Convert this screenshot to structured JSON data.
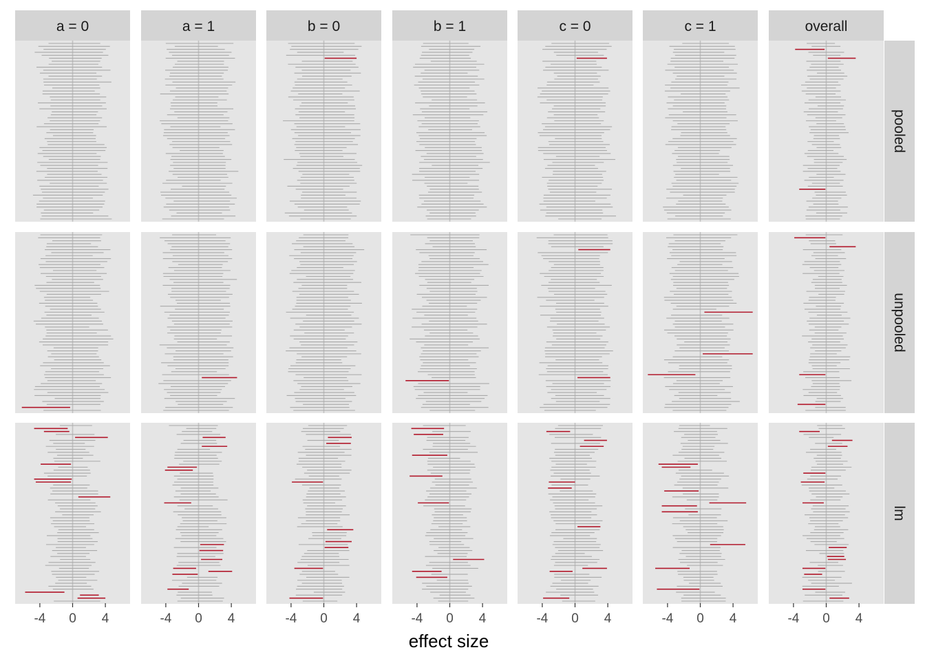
{
  "chart_data": {
    "type": "forest-interval-facets",
    "xlabel": "effect size",
    "xticks": [
      -4,
      0,
      4
    ],
    "xlim": [
      -7,
      7
    ],
    "reference_line": 0,
    "columns": [
      "a = 0",
      "a = 1",
      "b = 0",
      "b = 1",
      "c = 0",
      "c = 1",
      "overall"
    ],
    "rows": [
      "pooled",
      "unpooled",
      "lm"
    ],
    "colors": {
      "panel_bg": "#e5e5e5",
      "strip_bg": "#d4d4d4",
      "interval": "#a9a9a9",
      "highlight": "#b2182b",
      "zero_line": "#c2c2c2"
    },
    "intervals_per_panel": 60,
    "highlighted_intervals": [
      {
        "row": "pooled",
        "column": "b = 0",
        "y": 5,
        "lo": 0.1,
        "hi": 4.0
      },
      {
        "row": "pooled",
        "column": "c = 0",
        "y": 5,
        "lo": 0.2,
        "hi": 3.9
      },
      {
        "row": "pooled",
        "column": "overall",
        "y": 2,
        "lo": -3.8,
        "hi": -0.2
      },
      {
        "row": "pooled",
        "column": "overall",
        "y": 5,
        "lo": 0.2,
        "hi": 3.6
      },
      {
        "row": "pooled",
        "column": "overall",
        "y": 49,
        "lo": -3.3,
        "hi": -0.1
      },
      {
        "row": "unpooled",
        "column": "a = 0",
        "y": 58,
        "lo": -6.2,
        "hi": -0.3
      },
      {
        "row": "unpooled",
        "column": "a = 1",
        "y": 48,
        "lo": 0.4,
        "hi": 4.7
      },
      {
        "row": "unpooled",
        "column": "b = 1",
        "y": 49,
        "lo": -5.4,
        "hi": -0.1
      },
      {
        "row": "unpooled",
        "column": "c = 0",
        "y": 5,
        "lo": 0.4,
        "hi": 4.3
      },
      {
        "row": "unpooled",
        "column": "c = 0",
        "y": 48,
        "lo": 0.3,
        "hi": 4.3
      },
      {
        "row": "unpooled",
        "column": "c = 1",
        "y": 26,
        "lo": 0.5,
        "hi": 6.4
      },
      {
        "row": "unpooled",
        "column": "c = 1",
        "y": 40,
        "lo": 0.3,
        "hi": 6.4
      },
      {
        "row": "unpooled",
        "column": "c = 1",
        "y": 47,
        "lo": -6.4,
        "hi": -0.6
      },
      {
        "row": "unpooled",
        "column": "overall",
        "y": 1,
        "lo": -3.9,
        "hi": -0.1
      },
      {
        "row": "unpooled",
        "column": "overall",
        "y": 4,
        "lo": 0.4,
        "hi": 3.6
      },
      {
        "row": "unpooled",
        "column": "overall",
        "y": 47,
        "lo": -3.3,
        "hi": -0.1
      },
      {
        "row": "unpooled",
        "column": "overall",
        "y": 57,
        "lo": -3.5,
        "hi": -0.1
      },
      {
        "row": "lm",
        "column": "a = 0",
        "y": 1,
        "lo": -4.7,
        "hi": -0.6
      },
      {
        "row": "lm",
        "column": "a = 0",
        "y": 2,
        "lo": -3.5,
        "hi": -0.4
      },
      {
        "row": "lm",
        "column": "a = 0",
        "y": 4,
        "lo": 0.3,
        "hi": 4.3
      },
      {
        "row": "lm",
        "column": "a = 0",
        "y": 13,
        "lo": -3.9,
        "hi": -0.2
      },
      {
        "row": "lm",
        "column": "a = 0",
        "y": 18,
        "lo": -4.7,
        "hi": -0.1
      },
      {
        "row": "lm",
        "column": "a = 0",
        "y": 19,
        "lo": -4.5,
        "hi": -0.2
      },
      {
        "row": "lm",
        "column": "a = 0",
        "y": 24,
        "lo": 0.7,
        "hi": 4.6
      },
      {
        "row": "lm",
        "column": "a = 0",
        "y": 56,
        "lo": -5.8,
        "hi": -1.0
      },
      {
        "row": "lm",
        "column": "a = 0",
        "y": 57,
        "lo": 0.9,
        "hi": 3.2
      },
      {
        "row": "lm",
        "column": "a = 0",
        "y": 58,
        "lo": 0.6,
        "hi": 4.0
      },
      {
        "row": "lm",
        "column": "a = 1",
        "y": 4,
        "lo": 0.5,
        "hi": 3.3
      },
      {
        "row": "lm",
        "column": "a = 1",
        "y": 7,
        "lo": 0.4,
        "hi": 3.5
      },
      {
        "row": "lm",
        "column": "a = 1",
        "y": 14,
        "lo": -3.8,
        "hi": -0.2
      },
      {
        "row": "lm",
        "column": "a = 1",
        "y": 15,
        "lo": -4.1,
        "hi": -0.7
      },
      {
        "row": "lm",
        "column": "a = 1",
        "y": 26,
        "lo": -4.2,
        "hi": -0.9
      },
      {
        "row": "lm",
        "column": "a = 1",
        "y": 40,
        "lo": 0.2,
        "hi": 3.1
      },
      {
        "row": "lm",
        "column": "a = 1",
        "y": 42,
        "lo": 0.1,
        "hi": 3.0
      },
      {
        "row": "lm",
        "column": "a = 1",
        "y": 45,
        "lo": 0.3,
        "hi": 2.9
      },
      {
        "row": "lm",
        "column": "a = 1",
        "y": 48,
        "lo": -3.1,
        "hi": -0.3
      },
      {
        "row": "lm",
        "column": "a = 1",
        "y": 49,
        "lo": 1.2,
        "hi": 4.1
      },
      {
        "row": "lm",
        "column": "a = 1",
        "y": 50,
        "lo": -3.2,
        "hi": -0.1
      },
      {
        "row": "lm",
        "column": "a = 1",
        "y": 55,
        "lo": -3.8,
        "hi": -1.2
      },
      {
        "row": "lm",
        "column": "b = 0",
        "y": 4,
        "lo": 0.5,
        "hi": 3.4
      },
      {
        "row": "lm",
        "column": "b = 0",
        "y": 6,
        "lo": 0.3,
        "hi": 3.3
      },
      {
        "row": "lm",
        "column": "b = 0",
        "y": 19,
        "lo": -3.9,
        "hi": -0.1
      },
      {
        "row": "lm",
        "column": "b = 0",
        "y": 35,
        "lo": 0.4,
        "hi": 3.6
      },
      {
        "row": "lm",
        "column": "b = 0",
        "y": 39,
        "lo": 0.2,
        "hi": 3.4
      },
      {
        "row": "lm",
        "column": "b = 0",
        "y": 41,
        "lo": 0.1,
        "hi": 3.0
      },
      {
        "row": "lm",
        "column": "b = 0",
        "y": 48,
        "lo": -3.6,
        "hi": -0.1
      },
      {
        "row": "lm",
        "column": "b = 0",
        "y": 58,
        "lo": -4.2,
        "hi": -0.1
      },
      {
        "row": "lm",
        "column": "b = 1",
        "y": 1,
        "lo": -4.7,
        "hi": -0.7
      },
      {
        "row": "lm",
        "column": "b = 1",
        "y": 3,
        "lo": -4.4,
        "hi": -0.8
      },
      {
        "row": "lm",
        "column": "b = 1",
        "y": 10,
        "lo": -4.6,
        "hi": -0.3
      },
      {
        "row": "lm",
        "column": "b = 1",
        "y": 17,
        "lo": -4.9,
        "hi": -0.9
      },
      {
        "row": "lm",
        "column": "b = 1",
        "y": 26,
        "lo": -3.9,
        "hi": -0.1
      },
      {
        "row": "lm",
        "column": "b = 1",
        "y": 45,
        "lo": 0.4,
        "hi": 4.2
      },
      {
        "row": "lm",
        "column": "b = 1",
        "y": 49,
        "lo": -4.6,
        "hi": -1.0
      },
      {
        "row": "lm",
        "column": "b = 1",
        "y": 51,
        "lo": -4.1,
        "hi": -0.3
      },
      {
        "row": "lm",
        "column": "c = 0",
        "y": 2,
        "lo": -3.5,
        "hi": -0.6
      },
      {
        "row": "lm",
        "column": "c = 0",
        "y": 5,
        "lo": 1.1,
        "hi": 3.9
      },
      {
        "row": "lm",
        "column": "c = 0",
        "y": 7,
        "lo": 0.6,
        "hi": 3.5
      },
      {
        "row": "lm",
        "column": "c = 0",
        "y": 19,
        "lo": -3.2,
        "hi": 0.0
      },
      {
        "row": "lm",
        "column": "c = 0",
        "y": 21,
        "lo": -3.3,
        "hi": -0.4
      },
      {
        "row": "lm",
        "column": "c = 0",
        "y": 34,
        "lo": 0.3,
        "hi": 3.1
      },
      {
        "row": "lm",
        "column": "c = 0",
        "y": 48,
        "lo": 0.9,
        "hi": 3.9
      },
      {
        "row": "lm",
        "column": "c = 0",
        "y": 49,
        "lo": -3.1,
        "hi": -0.3
      },
      {
        "row": "lm",
        "column": "c = 0",
        "y": 58,
        "lo": -3.9,
        "hi": -0.7
      },
      {
        "row": "lm",
        "column": "c = 1",
        "y": 13,
        "lo": -5.1,
        "hi": -0.3
      },
      {
        "row": "lm",
        "column": "c = 1",
        "y": 14,
        "lo": -4.7,
        "hi": -1.2
      },
      {
        "row": "lm",
        "column": "c = 1",
        "y": 22,
        "lo": -4.4,
        "hi": -0.2
      },
      {
        "row": "lm",
        "column": "c = 1",
        "y": 26,
        "lo": 1.1,
        "hi": 5.6
      },
      {
        "row": "lm",
        "column": "c = 1",
        "y": 27,
        "lo": -4.7,
        "hi": -0.4
      },
      {
        "row": "lm",
        "column": "c = 1",
        "y": 29,
        "lo": -4.7,
        "hi": -0.3
      },
      {
        "row": "lm",
        "column": "c = 1",
        "y": 40,
        "lo": 1.2,
        "hi": 5.5
      },
      {
        "row": "lm",
        "column": "c = 1",
        "y": 48,
        "lo": -5.5,
        "hi": -1.3
      },
      {
        "row": "lm",
        "column": "c = 1",
        "y": 55,
        "lo": -5.3,
        "hi": -0.1
      },
      {
        "row": "lm",
        "column": "overall",
        "y": 2,
        "lo": -3.3,
        "hi": -0.8
      },
      {
        "row": "lm",
        "column": "overall",
        "y": 5,
        "lo": 0.7,
        "hi": 3.2
      },
      {
        "row": "lm",
        "column": "overall",
        "y": 7,
        "lo": 0.2,
        "hi": 2.6
      },
      {
        "row": "lm",
        "column": "overall",
        "y": 16,
        "lo": -2.8,
        "hi": -0.1
      },
      {
        "row": "lm",
        "column": "overall",
        "y": 19,
        "lo": -3.1,
        "hi": -0.2
      },
      {
        "row": "lm",
        "column": "overall",
        "y": 26,
        "lo": -2.9,
        "hi": -0.3
      },
      {
        "row": "lm",
        "column": "overall",
        "y": 41,
        "lo": 0.3,
        "hi": 2.5
      },
      {
        "row": "lm",
        "column": "overall",
        "y": 44,
        "lo": 0.1,
        "hi": 2.2
      },
      {
        "row": "lm",
        "column": "overall",
        "y": 45,
        "lo": 0.2,
        "hi": 2.4
      },
      {
        "row": "lm",
        "column": "overall",
        "y": 48,
        "lo": -2.9,
        "hi": -0.1
      },
      {
        "row": "lm",
        "column": "overall",
        "y": 50,
        "lo": -2.7,
        "hi": -0.5
      },
      {
        "row": "lm",
        "column": "overall",
        "y": 55,
        "lo": -2.9,
        "hi": -0.1
      },
      {
        "row": "lm",
        "column": "overall",
        "y": 58,
        "lo": 0.4,
        "hi": 2.8
      }
    ]
  }
}
